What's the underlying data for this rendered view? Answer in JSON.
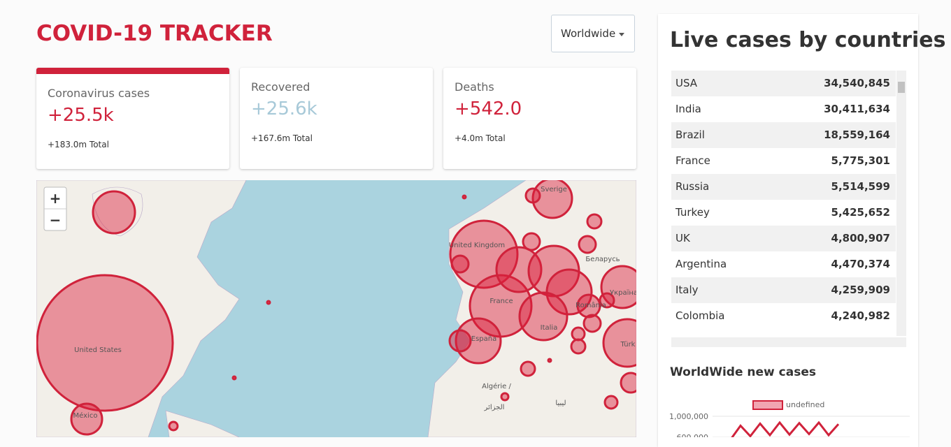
{
  "header": {
    "title": "COVID-19 TRACKER",
    "dropdown": "Worldwide"
  },
  "cards": [
    {
      "title": "Coronavirus cases",
      "today": "+25.5k",
      "total": "+183.0m Total"
    },
    {
      "title": "Recovered",
      "today": "+25.6k",
      "total": "+167.6m Total"
    },
    {
      "title": "Deaths",
      "today": "+542.0",
      "total": "+4.0m Total"
    }
  ],
  "map": {
    "zoom": [
      "+",
      "−"
    ],
    "labels": [
      "United States",
      "México",
      "United Kingdom",
      "France",
      "España",
      "Italia",
      "Sverige",
      "Беларусь",
      "Україна",
      "România",
      "Türk",
      "Algérie /",
      "الجزائر",
      "ليبيا"
    ]
  },
  "table": {
    "title": "Live cases by countries",
    "rows": [
      [
        "USA",
        "34,540,845"
      ],
      [
        "India",
        "30,411,634"
      ],
      [
        "Brazil",
        "18,559,164"
      ],
      [
        "France",
        "5,775,301"
      ],
      [
        "Russia",
        "5,514,599"
      ],
      [
        "Turkey",
        "5,425,652"
      ],
      [
        "UK",
        "4,800,907"
      ],
      [
        "Argentina",
        "4,470,374"
      ],
      [
        "Italy",
        "4,259,909"
      ],
      [
        "Colombia",
        "4,240,982"
      ]
    ]
  },
  "new_cases_chart": {
    "type": "line",
    "title": "WorldWide new cases",
    "legend": "undefined",
    "color": "#d0223b",
    "categories": [
      null,
      null,
      null,
      null,
      null,
      null,
      null,
      null,
      null,
      null,
      null,
      null
    ],
    "values": [
      560000,
      820000,
      620000,
      860000,
      640000,
      880000,
      650000,
      870000,
      660000,
      880000,
      640000,
      850000
    ],
    "ylim": [
      600000,
      1000000
    ],
    "yticks": [
      {
        "value": 1000000,
        "label": "1,000,000"
      },
      {
        "value": 600000,
        "label": "600,000"
      }
    ]
  }
}
